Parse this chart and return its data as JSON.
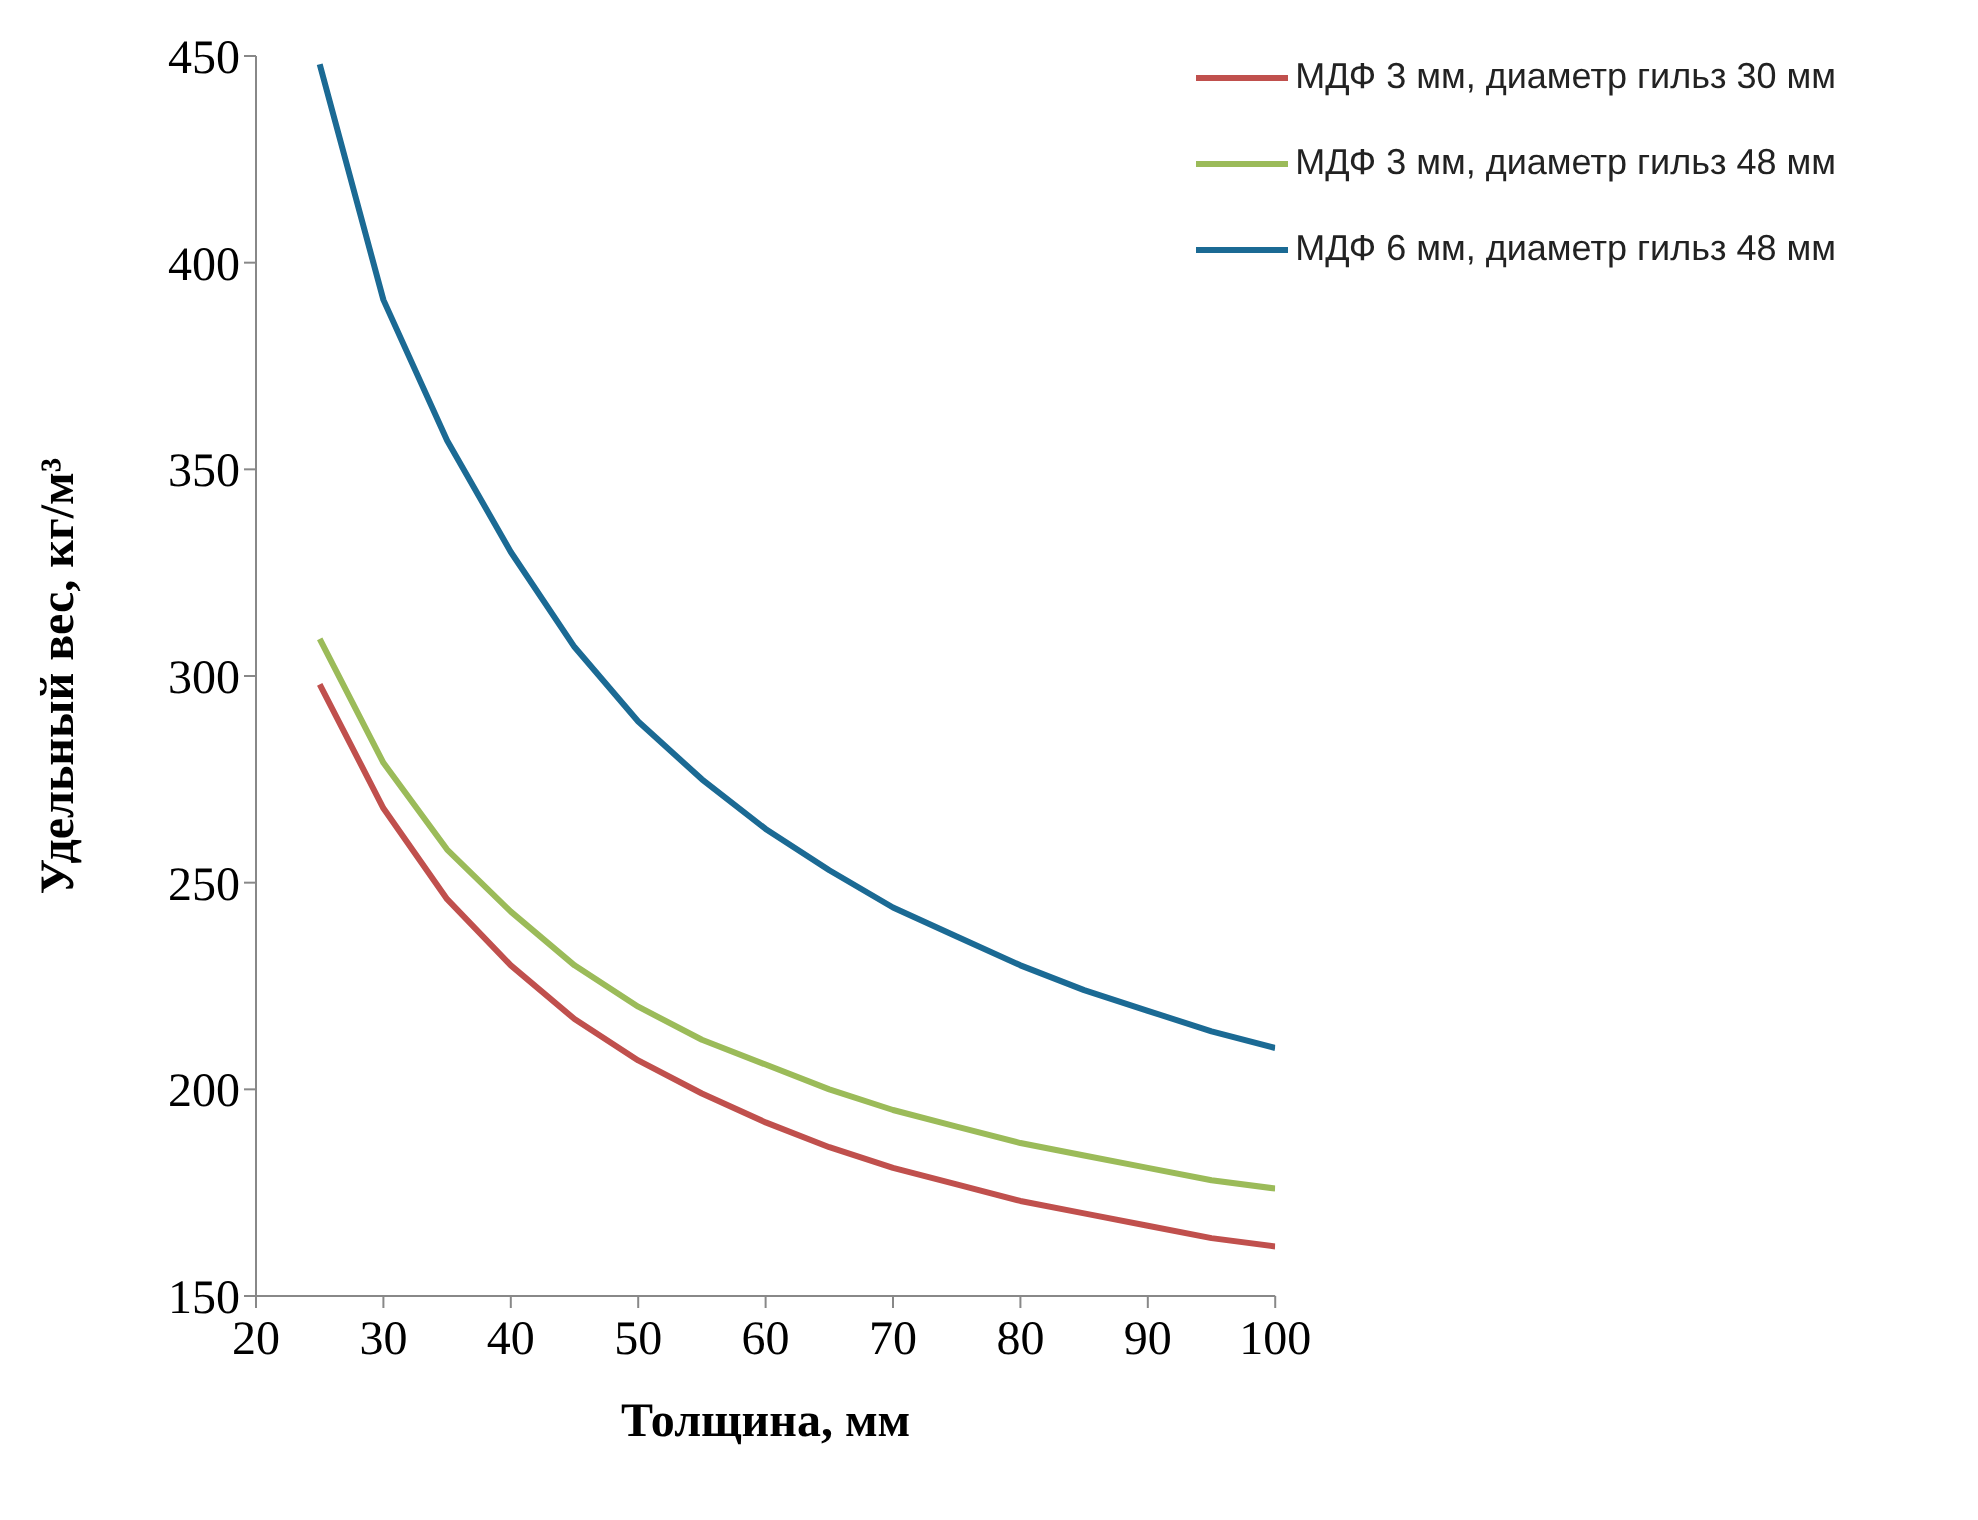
{
  "chart_data": {
    "type": "line",
    "xlabel": "Толщина, мм",
    "ylabel": "Удельный вес, кг/м³",
    "x": [
      25,
      30,
      35,
      40,
      45,
      50,
      55,
      60,
      65,
      70,
      75,
      80,
      85,
      90,
      95,
      100
    ],
    "series": [
      {
        "name": "МДФ 3 мм, диаметр гильз 30 мм",
        "color": "#c0504d",
        "values": [
          298,
          268,
          246,
          230,
          217,
          207,
          199,
          192,
          186,
          181,
          177,
          173,
          170,
          167,
          164,
          162
        ]
      },
      {
        "name": "МДФ 3 мм, диаметр гильз 48 мм",
        "color": "#9bbb59",
        "values": [
          309,
          279,
          258,
          243,
          230,
          220,
          212,
          206,
          200,
          195,
          191,
          187,
          184,
          181,
          178,
          176
        ]
      },
      {
        "name": "МДФ 6 мм, диаметр гильз 48 мм",
        "color": "#1b6a94",
        "values": [
          448,
          391,
          357,
          330,
          307,
          289,
          275,
          263,
          253,
          244,
          237,
          230,
          224,
          219,
          214,
          210
        ]
      }
    ],
    "xlim": [
      20,
      100
    ],
    "xticks": [
      20,
      30,
      40,
      50,
      60,
      70,
      80,
      90,
      100
    ],
    "ylim": [
      150,
      450
    ],
    "yticks": [
      150,
      200,
      250,
      300,
      350,
      400,
      450
    ],
    "legend": "top right",
    "grid": false
  }
}
